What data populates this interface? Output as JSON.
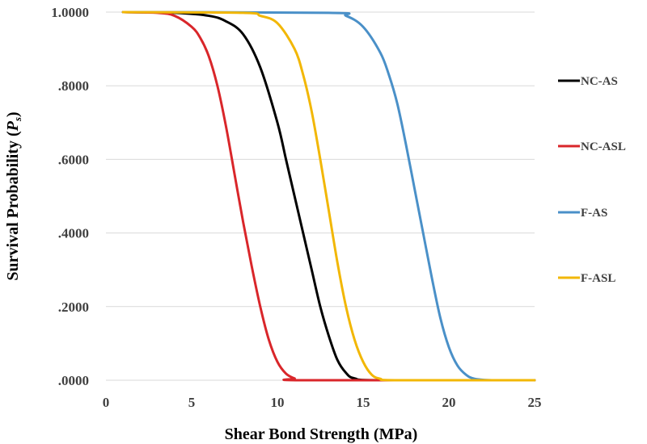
{
  "chart_data": {
    "type": "line",
    "title": "",
    "xlabel": "Shear Bond Strength (MPa)",
    "ylabel": "Survival Probability (",
    "ylabel_symbol": "P",
    "ylabel_subscript": "s",
    "ylabel_suffix": ")",
    "xlim": [
      0,
      25
    ],
    "ylim": [
      0,
      1
    ],
    "x_ticks": [
      0,
      5,
      10,
      15,
      20,
      25
    ],
    "x_tick_labels": [
      "0",
      "5",
      "10",
      "15",
      "20",
      "25"
    ],
    "y_ticks": [
      0,
      0.2,
      0.4,
      0.6,
      0.8,
      1.0
    ],
    "y_tick_labels": [
      ".0000",
      ".2000",
      ".4000",
      ".6000",
      ".8000",
      "1.0000"
    ],
    "grid": "horizontal",
    "legend_position": "right",
    "series": [
      {
        "name": "NC-AS",
        "color": "#000000",
        "x": [
          1,
          4,
          6,
          7,
          8,
          9,
          10,
          10.5,
          11,
          11.5,
          12,
          12.5,
          13,
          13.5,
          14,
          14.5,
          16,
          25
        ],
        "values": [
          1.0,
          0.998,
          0.99,
          0.975,
          0.94,
          0.85,
          0.7,
          0.6,
          0.5,
          0.4,
          0.3,
          0.2,
          0.12,
          0.055,
          0.02,
          0.005,
          0.0,
          0.0
        ]
      },
      {
        "name": "NC-ASL",
        "color": "#d9262a",
        "x": [
          1,
          3,
          4,
          5,
          5.5,
          6,
          6.5,
          7,
          7.5,
          8,
          8.5,
          9,
          9.5,
          10,
          10.5,
          11,
          11.5,
          25
        ],
        "values": [
          1.0,
          0.998,
          0.99,
          0.96,
          0.93,
          0.88,
          0.8,
          0.69,
          0.56,
          0.43,
          0.31,
          0.2,
          0.11,
          0.05,
          0.018,
          0.005,
          0.0,
          0.0
        ]
      },
      {
        "name": "F-AS",
        "color": "#4a90c8",
        "x": [
          1,
          13,
          14,
          15,
          16,
          16.5,
          17,
          17.5,
          18,
          18.5,
          19,
          19.5,
          20,
          20.5,
          21,
          21.5,
          22.5,
          25
        ],
        "values": [
          1.0,
          0.998,
          0.99,
          0.96,
          0.89,
          0.83,
          0.75,
          0.64,
          0.52,
          0.4,
          0.28,
          0.17,
          0.09,
          0.04,
          0.015,
          0.004,
          0.0,
          0.0
        ]
      },
      {
        "name": "F-ASL",
        "color": "#f2b705",
        "x": [
          1,
          8,
          9,
          10,
          11,
          11.5,
          12,
          12.5,
          13,
          13.5,
          14,
          14.5,
          15,
          15.5,
          16,
          17,
          25
        ],
        "values": [
          1.0,
          0.998,
          0.99,
          0.97,
          0.9,
          0.83,
          0.73,
          0.6,
          0.46,
          0.32,
          0.2,
          0.11,
          0.05,
          0.015,
          0.004,
          0.0,
          0.0
        ]
      }
    ]
  }
}
